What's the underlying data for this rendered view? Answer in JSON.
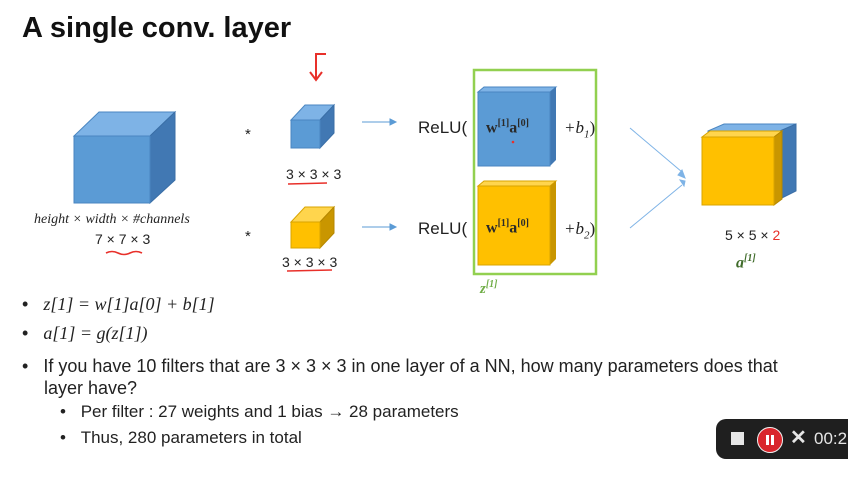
{
  "slide": {
    "title": "A single conv. layer",
    "input_label_line1": "height × width × #channels",
    "input_label_line2": "7 × 7 × 3",
    "mult_symbol": "*",
    "filter1_label": "3 × 3 × 3",
    "filter2_label": "3 × 3 × 3",
    "relu1": "ReLU(",
    "relu2": "ReLU(",
    "w_term": "w",
    "w_sup": "[1]",
    "a_term": "a",
    "a_sup": "[0]",
    "bias1": "+b",
    "bias1_sub": "1",
    "bias2": "+b",
    "bias2_sub": "2",
    "close_paren": ")",
    "z_label": "z",
    "z_sup": "[1]",
    "output_label_main": "5 × 5 × ",
    "output_label_highlight": "2",
    "output_a": "a",
    "output_a_sup": "[1]"
  },
  "bullets": [
    {
      "text": "z[1] = w[1]a[0] + b[1]"
    },
    {
      "text": "a[1] = g(z[1])"
    },
    {
      "text_line1": "If you have 10 filters that are 3 × 3 × 3 in one layer of a NN, how many parameters does that",
      "text_line2": "layer have?"
    },
    {
      "text": "Per filter : 27 weights and 1 bias → 28 parameters"
    },
    {
      "text": "Thus, 280 parameters in total"
    }
  ],
  "player": {
    "time": "00:2"
  },
  "colors": {
    "blue_front": "#5b9bd5",
    "blue_top": "#7eb3e6",
    "blue_side": "#4178b3",
    "yellow_front": "#ffc000",
    "yellow_top": "#ffd54d",
    "yellow_side": "#c99600",
    "green_box": "#92d050",
    "annotation_red": "#e8302a",
    "z_green": "#70ad47",
    "a_green": "#3f6b2a"
  },
  "icons": {
    "stop": "stop-icon",
    "pause": "pause-icon",
    "close": "close-icon"
  }
}
